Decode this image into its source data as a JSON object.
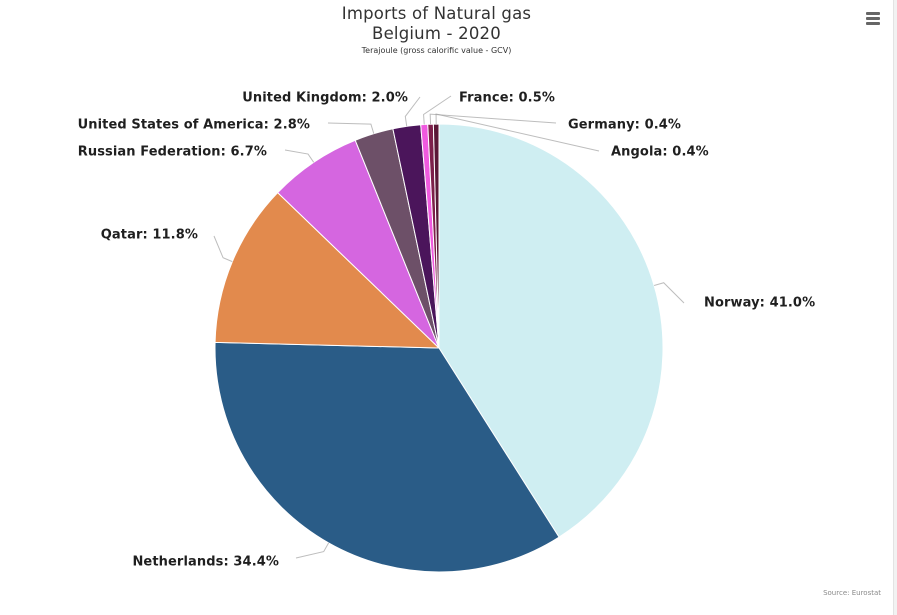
{
  "chart": {
    "title_line1": "Imports of Natural gas",
    "title_line2": "Belgium - 2020",
    "subtitle": "Terajoule (gross calorific value - GCV)",
    "credits": "Source: Eurostat",
    "menu_icon": "hamburger-menu-icon"
  },
  "chart_data": {
    "type": "pie",
    "title": "Imports of Natural gas Belgium - 2020",
    "subtitle": "Terajoule (gross calorific value - GCV)",
    "categories": [
      "Norway",
      "Netherlands",
      "Qatar",
      "Russian Federation",
      "United States of America",
      "United Kingdom",
      "France",
      "Germany",
      "Angola"
    ],
    "values": [
      41.0,
      34.4,
      11.8,
      6.7,
      2.8,
      2.0,
      0.5,
      0.4,
      0.4
    ],
    "labels": [
      "Norway: 41.0%",
      "Netherlands: 34.4%",
      "Qatar: 11.8%",
      "Russian Federation: 6.7%",
      "United States of America: 2.8%",
      "United Kingdom: 2.0%",
      "France: 0.5%",
      "Germany: 0.4%",
      "Angola: 0.4%"
    ],
    "colors": [
      "#cfeef2",
      "#2a5c87",
      "#e28a4d",
      "#d566e0",
      "#6d5068",
      "#4b155b",
      "#f05adf",
      "#7d1f4a",
      "#5a1736"
    ],
    "legend": "none",
    "grid": false,
    "unit": "%"
  }
}
